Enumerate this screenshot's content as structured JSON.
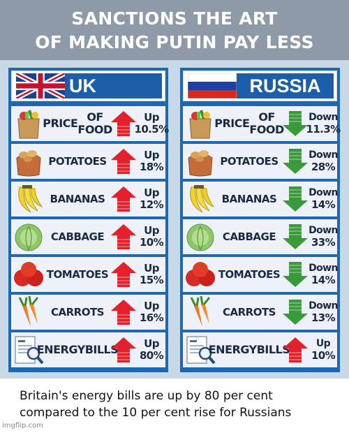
{
  "header": {
    "line1": "SANCTIONS THE ART",
    "line2": "OF MAKING PUTIN PAY LESS"
  },
  "colors": {
    "up_arrow": "#e3212d",
    "down_arrow": "#3a9a3a",
    "panel": "#1e68b2",
    "board": "#c9d8e6",
    "header_bg": "#8e9aa7"
  },
  "uk": {
    "title": "UK",
    "flag_icon": "uk-flag-icon",
    "rows": [
      {
        "icon": "grocery-bag-icon",
        "label1": "PRICE",
        "label2": "OF FOOD",
        "dir": "Up",
        "pct": "10.5%",
        "arrow": "up"
      },
      {
        "icon": "potatoes-icon",
        "label1": "POTATOES",
        "label2": "",
        "dir": "Up",
        "pct": "18%",
        "arrow": "up"
      },
      {
        "icon": "bananas-icon",
        "label1": "BANANAS",
        "label2": "",
        "dir": "Up",
        "pct": "12%",
        "arrow": "up"
      },
      {
        "icon": "cabbage-icon",
        "label1": "CABBAGE",
        "label2": "",
        "dir": "Up",
        "pct": "10%",
        "arrow": "up"
      },
      {
        "icon": "tomatoes-icon",
        "label1": "TOMATOES",
        "label2": "",
        "dir": "Up",
        "pct": "15%",
        "arrow": "up"
      },
      {
        "icon": "carrots-icon",
        "label1": "CARROTS",
        "label2": "",
        "dir": "Up",
        "pct": "16%",
        "arrow": "up"
      },
      {
        "icon": "energy-bill-icon",
        "label1": "ENERGY",
        "label2": "BILLS",
        "dir": "Up",
        "pct": "80%",
        "arrow": "up"
      }
    ]
  },
  "russia": {
    "title": "RUSSIA",
    "flag_icon": "russia-flag-icon",
    "rows": [
      {
        "icon": "grocery-bag-icon",
        "label1": "PRICE",
        "label2": "OF FOOD",
        "dir": "Down",
        "pct": "11.3%",
        "arrow": "down"
      },
      {
        "icon": "potatoes-icon",
        "label1": "POTATOES",
        "label2": "",
        "dir": "Down",
        "pct": "28%",
        "arrow": "down"
      },
      {
        "icon": "bananas-icon",
        "label1": "BANANAS",
        "label2": "",
        "dir": "Down",
        "pct": "14%",
        "arrow": "down"
      },
      {
        "icon": "cabbage-icon",
        "label1": "CABBAGE",
        "label2": "",
        "dir": "Down",
        "pct": "33%",
        "arrow": "down"
      },
      {
        "icon": "tomatoes-icon",
        "label1": "TOMATOES",
        "label2": "",
        "dir": "Down",
        "pct": "14%",
        "arrow": "down"
      },
      {
        "icon": "carrots-icon",
        "label1": "CARROTS",
        "label2": "",
        "dir": "Down",
        "pct": "13%",
        "arrow": "down"
      },
      {
        "icon": "energy-bill-icon",
        "label1": "ENERGY",
        "label2": "BILLS",
        "dir": "Up",
        "pct": "10%",
        "arrow": "up"
      }
    ]
  },
  "caption": {
    "line1": "Britain's energy bills are up by 80 per cent",
    "line2": "compared to the 10 per cent rise for Russians"
  },
  "watermark": "imgflip.com"
}
